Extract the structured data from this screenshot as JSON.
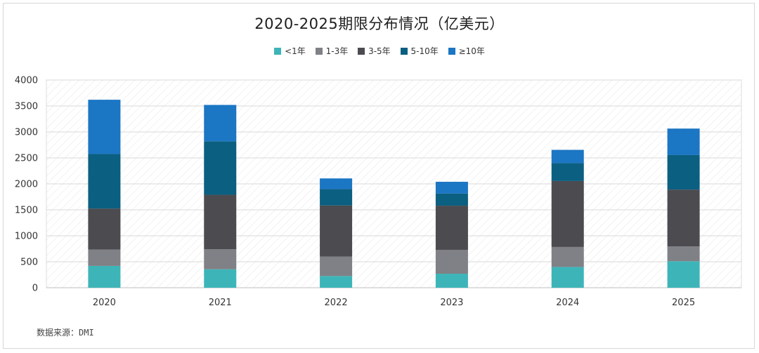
{
  "chart_data": {
    "type": "bar",
    "stacked": true,
    "title": "2020-2025期限分布情况（亿美元）",
    "categories": [
      "2020",
      "2021",
      "2022",
      "2023",
      "2024",
      "2025"
    ],
    "series": [
      {
        "name": "<1年",
        "color": "#3db5b8",
        "values": [
          420,
          355,
          225,
          270,
          400,
          510
        ]
      },
      {
        "name": "1-3年",
        "color": "#7f8186",
        "values": [
          315,
          385,
          375,
          460,
          385,
          285
        ]
      },
      {
        "name": "3-5年",
        "color": "#4b4b50",
        "values": [
          790,
          1050,
          985,
          850,
          1270,
          1095
        ]
      },
      {
        "name": "5-10年",
        "color": "#0b5f80",
        "values": [
          1050,
          1030,
          315,
          235,
          345,
          665
        ]
      },
      {
        "name": "≥10年",
        "color": "#1b76c4",
        "values": [
          1045,
          700,
          205,
          225,
          255,
          510
        ]
      }
    ],
    "ylim": [
      0,
      4000
    ],
    "yticks": [
      0,
      500,
      1000,
      1500,
      2000,
      2500,
      3000,
      3500,
      4000
    ],
    "xlabel": "",
    "ylabel": "",
    "grid": true,
    "legend_position": "top"
  },
  "source_note": "数据来源：DMI"
}
